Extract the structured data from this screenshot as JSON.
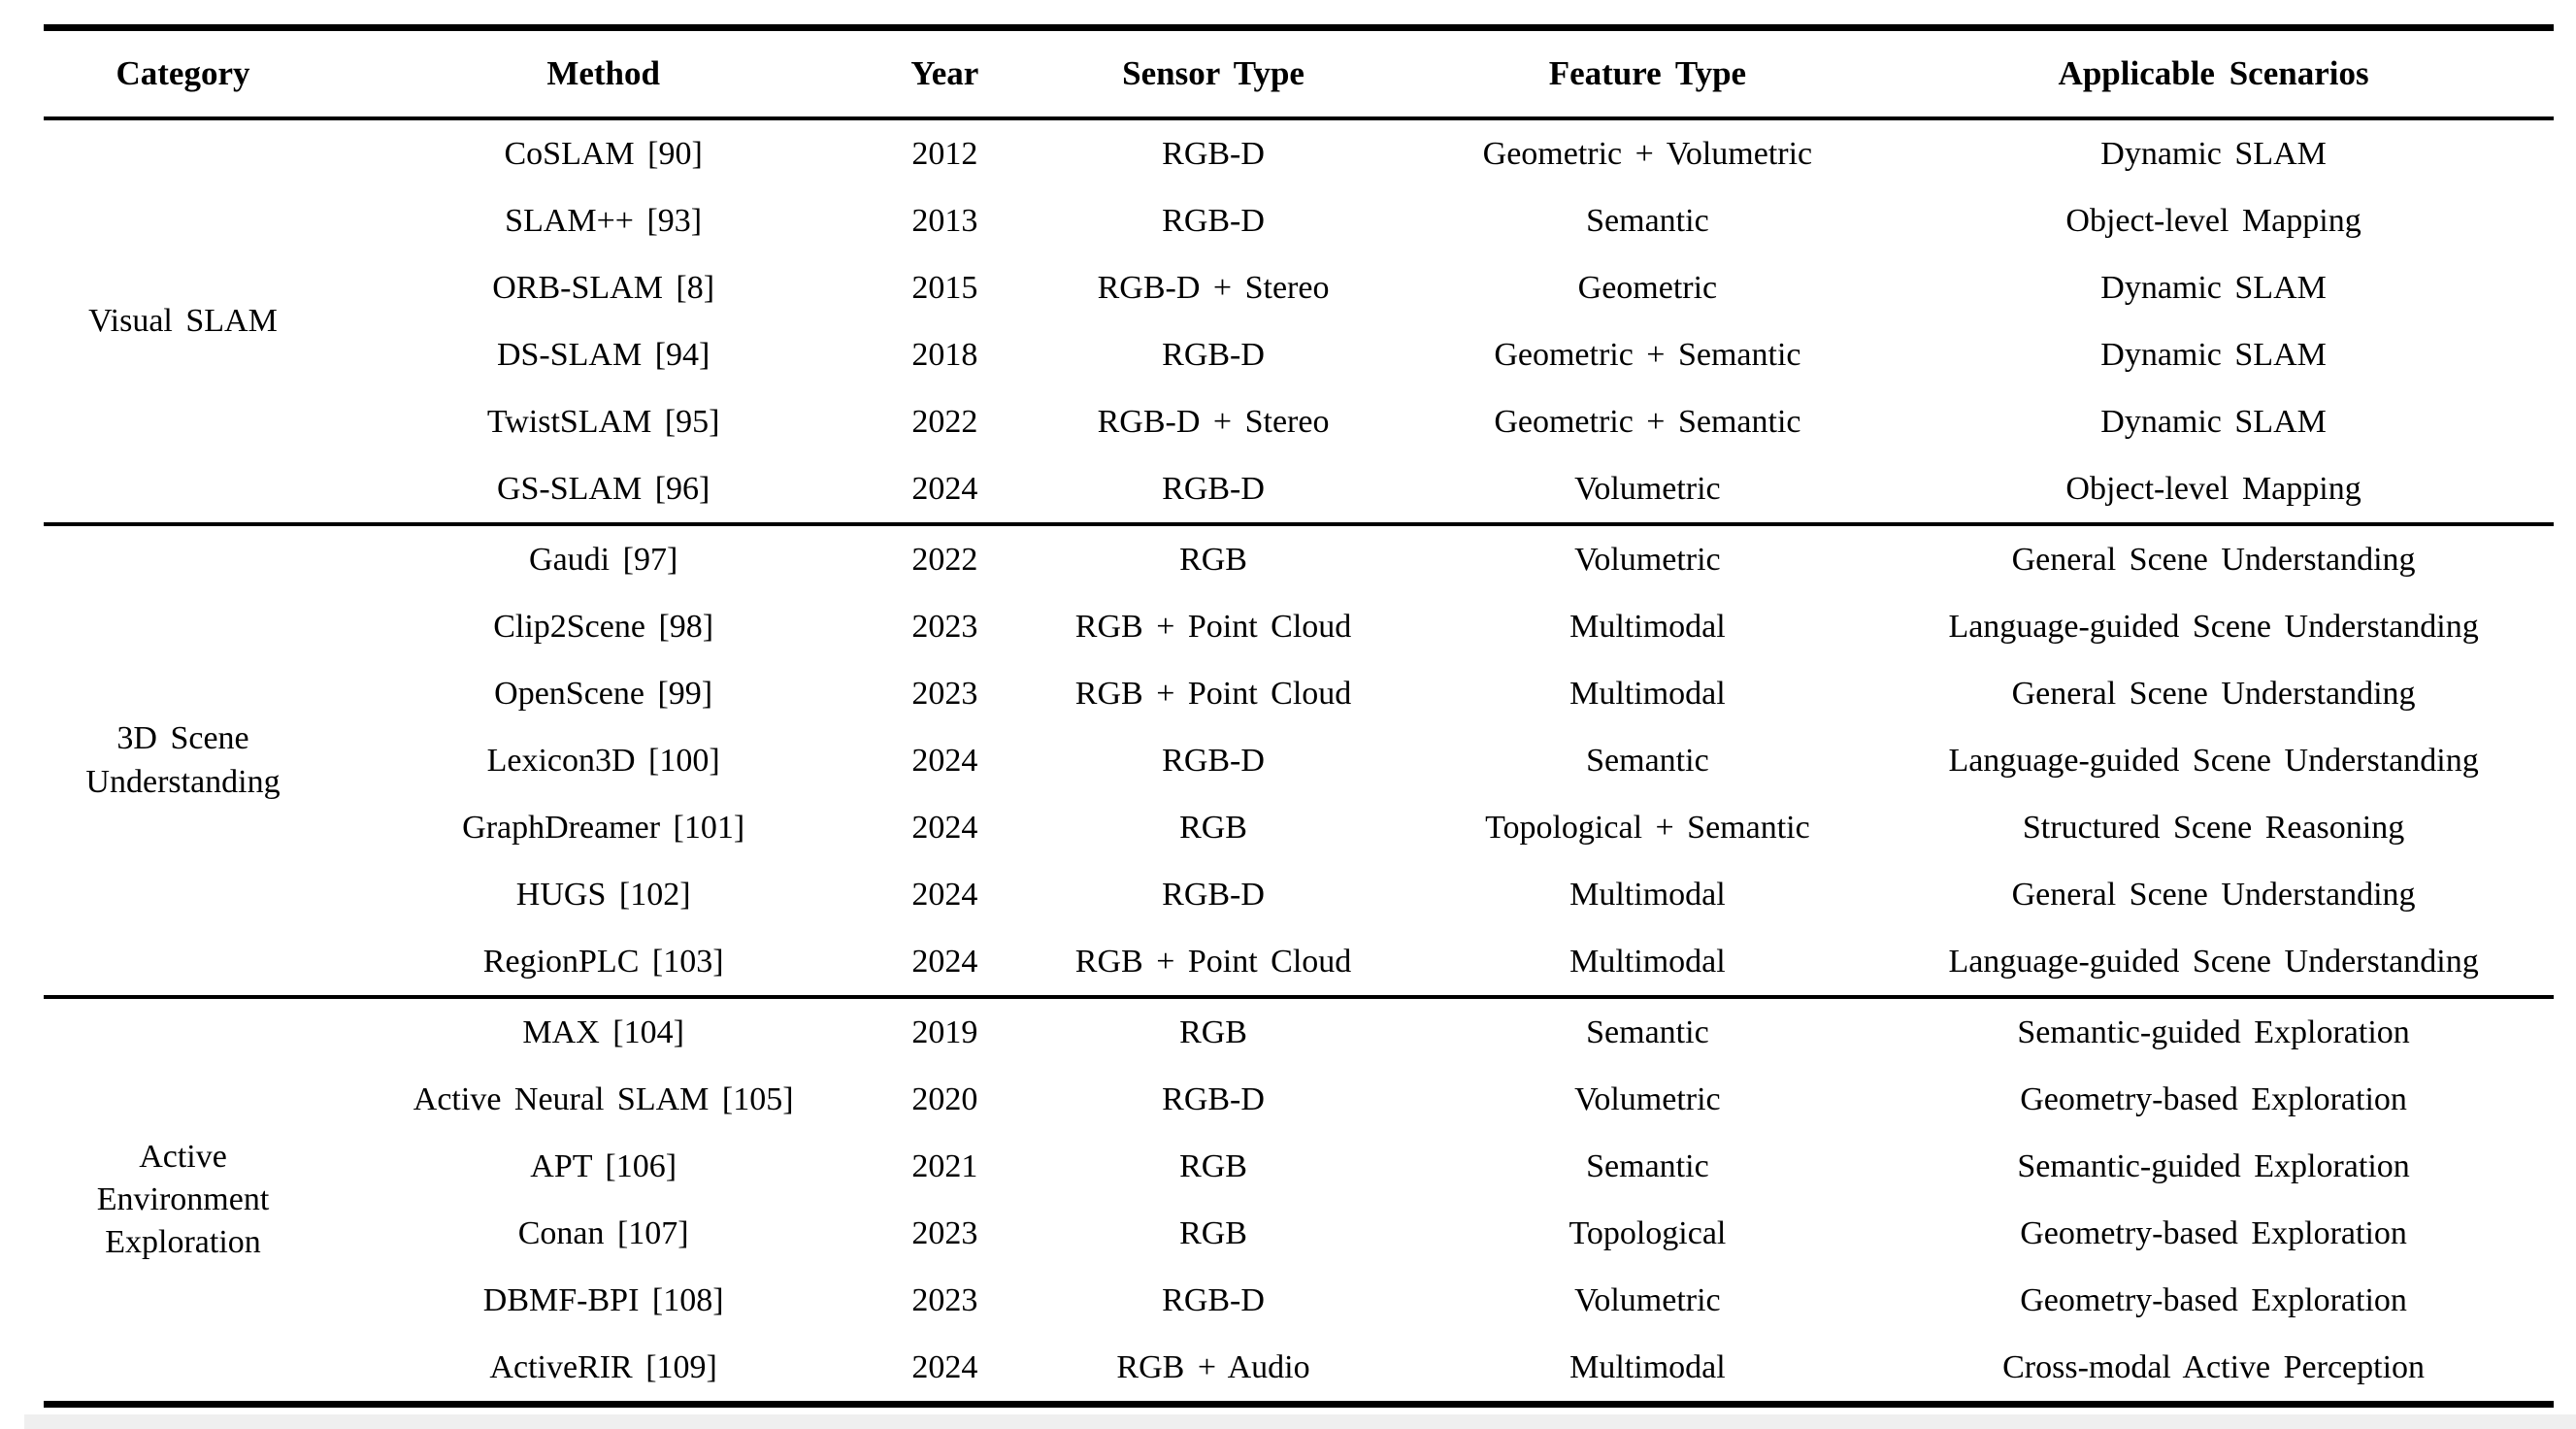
{
  "colors": {
    "background": "#ffffff",
    "text": "#000000",
    "rule": "#000000",
    "footer_strip": "#efefef"
  },
  "table": {
    "headers": [
      "Category",
      "Method",
      "Year",
      "Sensor Type",
      "Feature Type",
      "Applicable Scenarios"
    ],
    "sections": [
      {
        "category": "Visual SLAM",
        "category_lines": [
          "Visual SLAM"
        ],
        "rows": [
          {
            "method": "CoSLAM [90]",
            "year": "2012",
            "sensor": "RGB-D",
            "feature": "Geometric + Volumetric",
            "scenario": "Dynamic SLAM"
          },
          {
            "method": "SLAM++ [93]",
            "year": "2013",
            "sensor": "RGB-D",
            "feature": "Semantic",
            "scenario": "Object-level Mapping"
          },
          {
            "method": "ORB-SLAM [8]",
            "year": "2015",
            "sensor": "RGB-D + Stereo",
            "feature": "Geometric",
            "scenario": "Dynamic SLAM"
          },
          {
            "method": "DS-SLAM [94]",
            "year": "2018",
            "sensor": "RGB-D",
            "feature": "Geometric + Semantic",
            "scenario": "Dynamic SLAM"
          },
          {
            "method": "TwistSLAM [95]",
            "year": "2022",
            "sensor": "RGB-D + Stereo",
            "feature": "Geometric + Semantic",
            "scenario": "Dynamic SLAM"
          },
          {
            "method": "GS-SLAM [96]",
            "year": "2024",
            "sensor": "RGB-D",
            "feature": "Volumetric",
            "scenario": "Object-level Mapping"
          }
        ]
      },
      {
        "category": "3D Scene Understanding",
        "category_lines": [
          "3D Scene",
          "Understanding"
        ],
        "rows": [
          {
            "method": "Gaudi [97]",
            "year": "2022",
            "sensor": "RGB",
            "feature": "Volumetric",
            "scenario": "General Scene Understanding"
          },
          {
            "method": "Clip2Scene [98]",
            "year": "2023",
            "sensor": "RGB + Point Cloud",
            "feature": "Multimodal",
            "scenario": "Language-guided Scene Understanding"
          },
          {
            "method": "OpenScene [99]",
            "year": "2023",
            "sensor": "RGB + Point Cloud",
            "feature": "Multimodal",
            "scenario": "General Scene Understanding"
          },
          {
            "method": "Lexicon3D [100]",
            "year": "2024",
            "sensor": "RGB-D",
            "feature": "Semantic",
            "scenario": "Language-guided Scene Understanding"
          },
          {
            "method": "GraphDreamer [101]",
            "year": "2024",
            "sensor": "RGB",
            "feature": "Topological + Semantic",
            "scenario": "Structured Scene Reasoning"
          },
          {
            "method": "HUGS [102]",
            "year": "2024",
            "sensor": "RGB-D",
            "feature": "Multimodal",
            "scenario": "General Scene Understanding"
          },
          {
            "method": "RegionPLC [103]",
            "year": "2024",
            "sensor": "RGB + Point Cloud",
            "feature": "Multimodal",
            "scenario": "Language-guided Scene Understanding"
          }
        ]
      },
      {
        "category": "Active Environment Exploration",
        "category_lines": [
          "Active",
          "Environment",
          "Exploration"
        ],
        "rows": [
          {
            "method": "MAX [104]",
            "year": "2019",
            "sensor": "RGB",
            "feature": "Semantic",
            "scenario": "Semantic-guided Exploration"
          },
          {
            "method": "Active Neural SLAM [105]",
            "year": "2020",
            "sensor": "RGB-D",
            "feature": "Volumetric",
            "scenario": "Geometry-based Exploration"
          },
          {
            "method": "APT [106]",
            "year": "2021",
            "sensor": "RGB",
            "feature": "Semantic",
            "scenario": "Semantic-guided Exploration"
          },
          {
            "method": "Conan [107]",
            "year": "2023",
            "sensor": "RGB",
            "feature": "Topological",
            "scenario": "Geometry-based Exploration"
          },
          {
            "method": "DBMF-BPI [108]",
            "year": "2023",
            "sensor": "RGB-D",
            "feature": "Volumetric",
            "scenario": "Geometry-based Exploration"
          },
          {
            "method": "ActiveRIR [109]",
            "year": "2024",
            "sensor": "RGB + Audio",
            "feature": "Multimodal",
            "scenario": "Cross-modal Active Perception"
          }
        ]
      }
    ]
  }
}
